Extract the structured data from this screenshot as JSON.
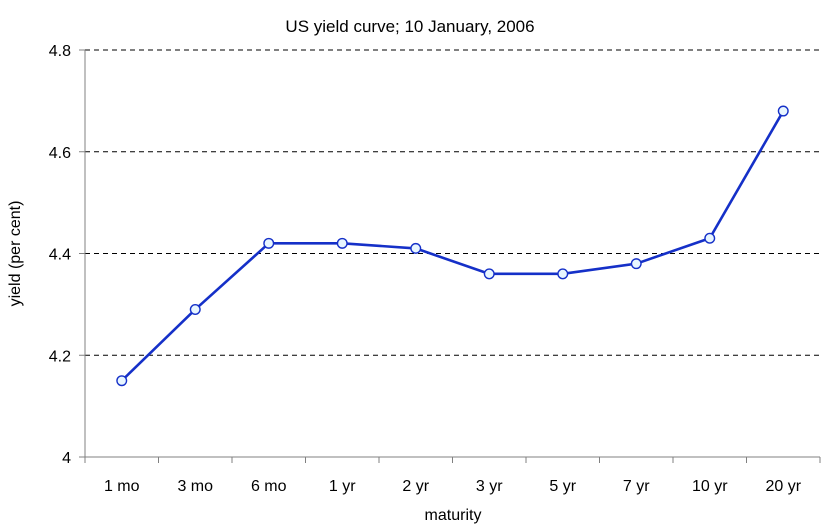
{
  "chart_data": {
    "type": "line",
    "title": "US yield curve; 10 January, 2006",
    "xlabel": "maturity",
    "ylabel": "yield (per cent)",
    "categories": [
      "1 mo",
      "3 mo",
      "6 mo",
      "1 yr",
      "2 yr",
      "3 yr",
      "5 yr",
      "7 yr",
      "10 yr",
      "20 yr"
    ],
    "series": [
      {
        "values": [
          4.15,
          4.29,
          4.42,
          4.42,
          4.41,
          4.36,
          4.36,
          4.38,
          4.43,
          4.68
        ]
      }
    ],
    "ylim": [
      4,
      4.8
    ],
    "yticks": [
      4,
      4.2,
      4.4,
      4.6,
      4.8
    ],
    "ytick_labels": [
      "4",
      "4.2",
      "4.4",
      "4.6",
      "4.8"
    ],
    "grid": "horizontal dashed",
    "legend": "none",
    "colors": {
      "line": "#1530c8",
      "marker_fill": "#e8f6ff",
      "axis": "#808080"
    }
  }
}
